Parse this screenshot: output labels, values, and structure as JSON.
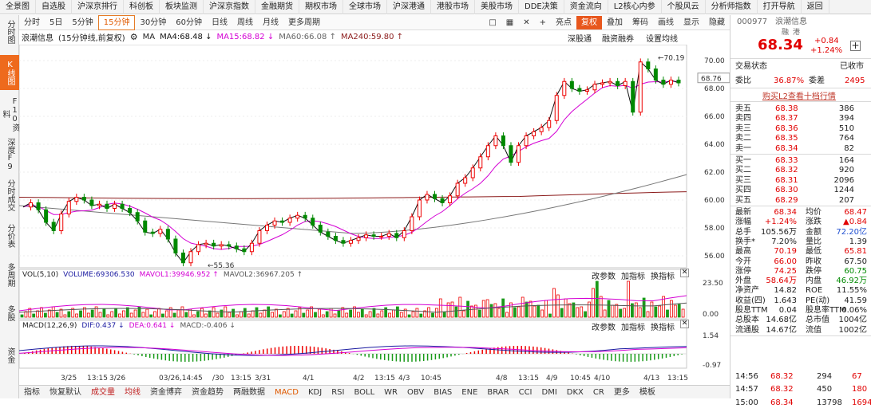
{
  "top_menu": [
    "全景图",
    "自选股",
    "沪深京排行",
    "科创板",
    "板块监测",
    "沪深京指数",
    "金融期货",
    "期权市场",
    "全球市场",
    "沪深港通",
    "港股市场",
    "美股市场",
    "DDE决策",
    "资金流向",
    "L2核心内参",
    "个股风云",
    "分析师指数",
    "打开导航",
    "返回"
  ],
  "left_sidebar": [
    "分时图",
    "K线图",
    "F10资料",
    "深度F9",
    "分时成交",
    "分价表",
    "多周期",
    "多股",
    "资金"
  ],
  "periods": [
    "分时",
    "5日",
    "5分钟",
    "15分钟",
    "30分钟",
    "60分钟",
    "日线",
    "周线",
    "月线",
    "更多周期"
  ],
  "tools": [
    "亮点",
    "复权",
    "叠加",
    "筹码",
    "画线",
    "显示",
    "隐藏"
  ],
  "tool_icons": [
    "square-icon",
    "grid-icon",
    "close-icon",
    "plus-icon"
  ],
  "info": {
    "stock": "浪潮信息",
    "mode": "(15分钟线,前复权)",
    "ma_label": "MA",
    "ma4": "MA4:68.48 ↓",
    "ma15": "MA15:68.82 ↓",
    "ma60": "MA60:66.08 ↑",
    "ma240": "MA240:59.80 ↑"
  },
  "chart_links": [
    "深股通",
    "融资融券",
    "设置均线"
  ],
  "price_chart": {
    "y_ticks": [
      "70.00",
      "68.00",
      "66.00",
      "64.00",
      "62.00",
      "60.00",
      "58.00",
      "56.00"
    ],
    "current": "68.76",
    "high_label": "70.19",
    "low_label": "55.36"
  },
  "vol": {
    "label": "VOL(5,10)",
    "volume": "VOLUME:69306.530",
    "mavol1": "MAVOL1:39946.952 ↑",
    "mavol2": "MAVOL2:36967.205 ↑",
    "ticks": [
      "23.50",
      "0.00"
    ]
  },
  "macd": {
    "label": "MACD(12,26,9)",
    "dif": "DIF:0.437 ↓",
    "dea": "DEA:0.641 ↓",
    "macd": "MACD:-0.406 ↓",
    "ticks": [
      "1.54",
      "-0.97"
    ]
  },
  "sub_links": [
    "改参数",
    "加指标",
    "换指标"
  ],
  "x_labels": [
    "3/25",
    "13:15",
    "3/26",
    "03/26,14:45",
    "/30",
    "13:15",
    "3/31",
    "4/1",
    "4/2",
    "13:15",
    "4/3",
    "10:45",
    "4/8",
    "13:15",
    "4/9",
    "10:45",
    "4/10",
    "4/13",
    "13:15"
  ],
  "bottom_tabs": [
    "指标",
    "恢复默认",
    "成交量",
    "均线",
    "资金博弈",
    "资金趋势",
    "两融数据",
    "MACD",
    "KDJ",
    "RSI",
    "BOLL",
    "WR",
    "OBV",
    "BIAS",
    "ENE",
    "BRAR",
    "CCI",
    "DMI",
    "DKX",
    "CR",
    "更多",
    "模板"
  ],
  "quote": {
    "code": "000977",
    "name": "浪潮信息",
    "tags": [
      "融",
      "港"
    ],
    "price": "68.34",
    "change": "+0.84",
    "pct": "+1.24%"
  },
  "trade_status": {
    "label": "交易状态",
    "value": "已收市"
  },
  "ratio": {
    "wb_label": "委比",
    "wb": "36.87%",
    "wc_label": "委差",
    "wc": "2495"
  },
  "l2_link": "购买L2查看十档行情",
  "sells": [
    [
      "卖五",
      "68.38",
      "386"
    ],
    [
      "卖四",
      "68.37",
      "394"
    ],
    [
      "卖三",
      "68.36",
      "510"
    ],
    [
      "卖二",
      "68.35",
      "764"
    ],
    [
      "卖一",
      "68.34",
      "82"
    ]
  ],
  "buys": [
    [
      "买一",
      "68.33",
      "164"
    ],
    [
      "买二",
      "68.32",
      "920"
    ],
    [
      "买三",
      "68.31",
      "2096"
    ],
    [
      "买四",
      "68.30",
      "1244"
    ],
    [
      "买五",
      "68.29",
      "207"
    ]
  ],
  "stats": [
    [
      "最新",
      "68.34",
      "均价",
      "68.47"
    ],
    [
      "涨幅",
      "+1.24%",
      "涨跌",
      "▲0.84"
    ],
    [
      "总手",
      "105.56万",
      "金额",
      "72.20亿"
    ],
    [
      "换手*",
      "7.20%",
      "量比",
      "1.39"
    ],
    [
      "最高",
      "70.19",
      "最低",
      "65.81"
    ],
    [
      "今开",
      "66.00",
      "昨收",
      "67.50"
    ],
    [
      "涨停",
      "74.25",
      "跌停",
      "60.75"
    ],
    [
      "外盘",
      "58.64万",
      "内盘",
      "46.92万"
    ],
    [
      "净资产",
      "14.82",
      "ROE",
      "11.55%"
    ],
    [
      "收益(四)",
      "1.643",
      "PE(动)",
      "41.59"
    ],
    [
      "股息TTM",
      "0.04",
      "股息率TTM",
      "0.06%"
    ],
    [
      "总股本",
      "14.68亿",
      "总市值",
      "1004亿"
    ],
    [
      "流通股",
      "14.67亿",
      "流值",
      "1002亿"
    ]
  ],
  "ticks_list": [
    [
      "14:56",
      "68.32",
      "294",
      "67"
    ],
    [
      "14:57",
      "68.32",
      "450",
      "180"
    ],
    [
      "15:00",
      "68.34",
      "13798",
      "1694"
    ]
  ]
}
